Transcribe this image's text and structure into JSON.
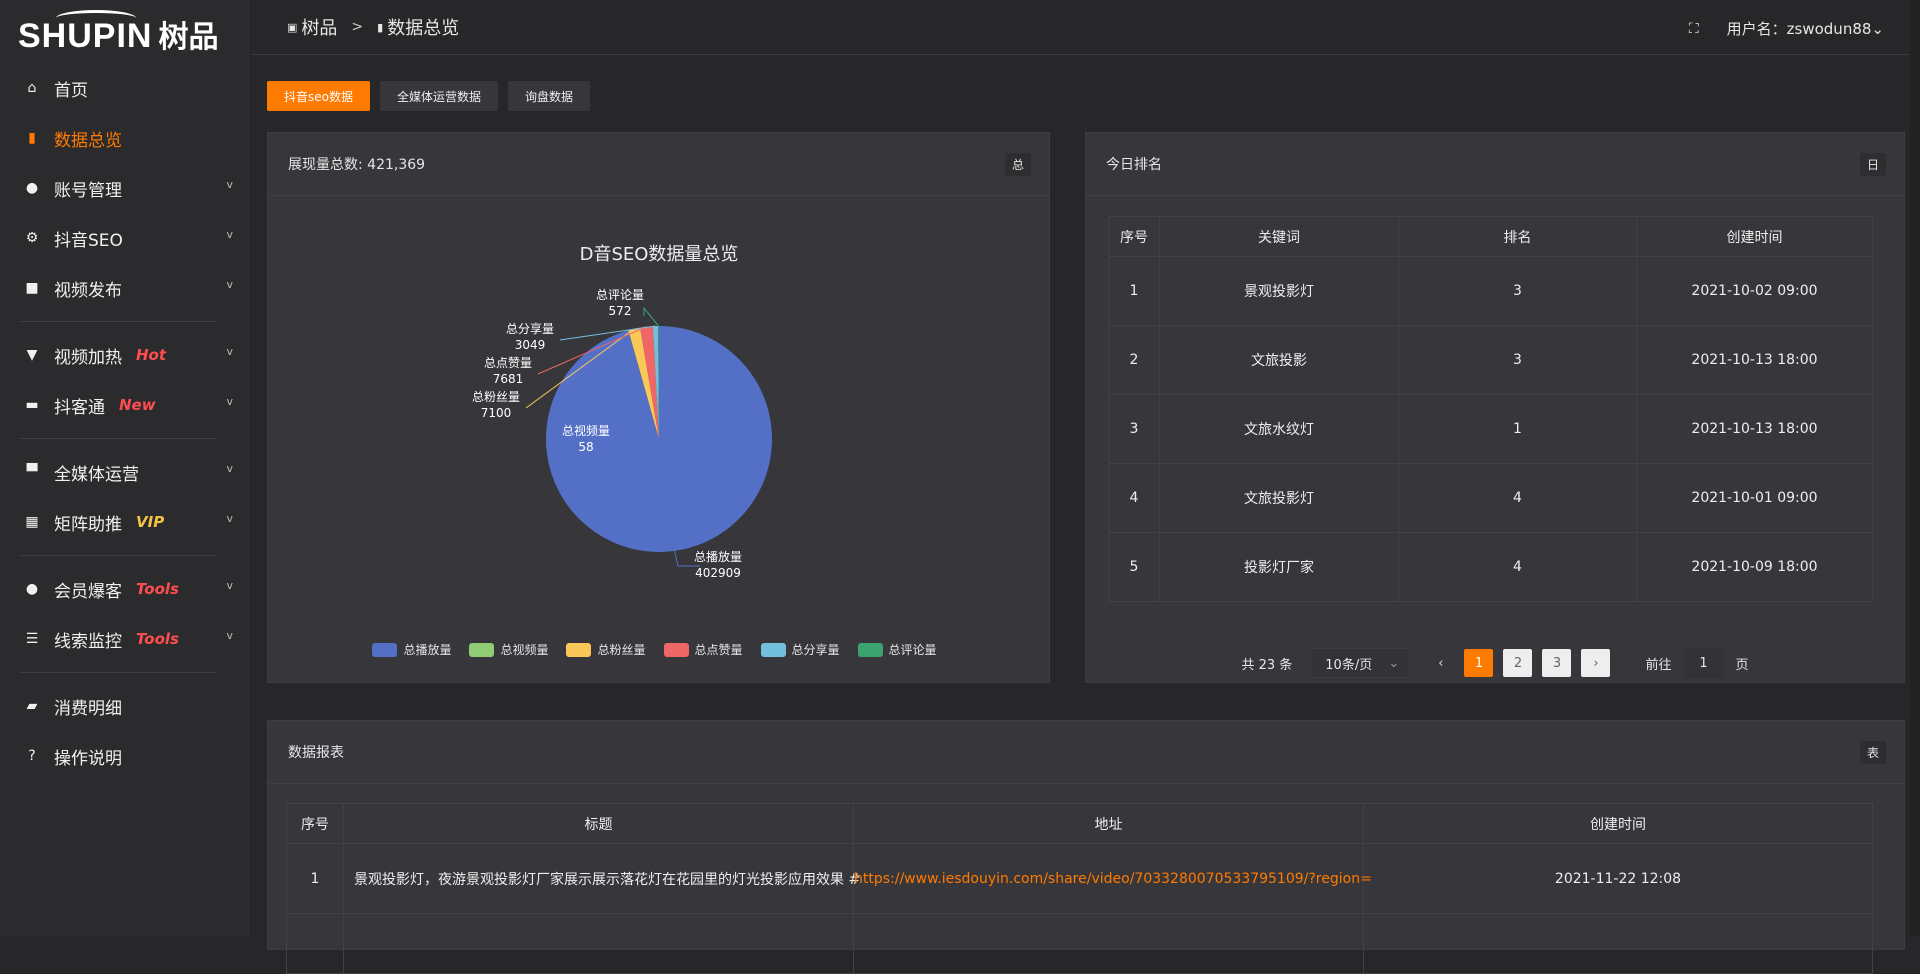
{
  "logo": {
    "en": "SHUPIN",
    "cn": "树品"
  },
  "sidebar": {
    "items": [
      {
        "label": "首页",
        "icon": "home-icon",
        "glyph": "⌂"
      },
      {
        "label": "数据总览",
        "icon": "bar-chart-icon",
        "glyph": "▮",
        "active": true
      },
      {
        "label": "账号管理",
        "icon": "user-icon",
        "glyph": "●",
        "chev": true
      },
      {
        "label": "抖音SEO",
        "icon": "gear-icon",
        "glyph": "⚙",
        "chev": true
      },
      {
        "label": "视频发布",
        "icon": "camera-icon",
        "glyph": "■",
        "chev": true
      },
      {
        "divider": true
      },
      {
        "label": "视频加热",
        "icon": "sign-icon",
        "glyph": "▼",
        "chev": true,
        "tag": "Hot",
        "tagColor": "#ff4d4f"
      },
      {
        "label": "抖客通",
        "icon": "chat-icon",
        "glyph": "▬",
        "chev": true,
        "tag": "New",
        "tagColor": "#ff4d4f"
      },
      {
        "divider": true
      },
      {
        "label": "全媒体运营",
        "icon": "monitor-icon",
        "glyph": "▀",
        "chev": true
      },
      {
        "label": "矩阵助推",
        "icon": "grid-icon",
        "glyph": "▦",
        "chev": true,
        "tag": "VIP",
        "tagColor": "#f5c242"
      },
      {
        "divider": true
      },
      {
        "label": "会员爆客",
        "icon": "user-icon",
        "glyph": "●",
        "chev": true,
        "tag": "Tools",
        "tagColor": "#ff4d4f"
      },
      {
        "label": "线索监控",
        "icon": "sliders-icon",
        "glyph": "☰",
        "chev": true,
        "tag": "Tools",
        "tagColor": "#ff4d4f"
      },
      {
        "divider": true
      },
      {
        "label": "消费明细",
        "icon": "wallet-icon",
        "glyph": "▰"
      },
      {
        "label": "操作说明",
        "icon": "help-icon",
        "glyph": "?"
      }
    ]
  },
  "header": {
    "crumb1": "树品",
    "sep": ">",
    "crumb2": "数据总览",
    "user": "用户名：zswodun88"
  },
  "tabs": [
    {
      "label": "抖音seo数据",
      "active": true
    },
    {
      "label": "全媒体运营数据"
    },
    {
      "label": "询盘数据"
    }
  ],
  "chart_panel": {
    "title": "展现量总数: 421,369",
    "badge": "总"
  },
  "chart_data": {
    "type": "pie",
    "title": "D音SEO数据量总览",
    "legend_position": "bottom",
    "series": [
      {
        "name": "总播放量",
        "value": 402909,
        "color": "#5470c6"
      },
      {
        "name": "总视频量",
        "value": 58,
        "color": "#91cc75"
      },
      {
        "name": "总粉丝量",
        "value": 7100,
        "color": "#fac858"
      },
      {
        "name": "总点赞量",
        "value": 7681,
        "color": "#ee6666"
      },
      {
        "name": "总分享量",
        "value": 3049,
        "color": "#73c0de"
      },
      {
        "name": "总评论量",
        "value": 572,
        "color": "#3ba272"
      }
    ]
  },
  "rank_panel": {
    "title": "今日排名",
    "badge": "日",
    "columns": [
      "序号",
      "关键词",
      "排名",
      "创建时间"
    ],
    "rows": [
      [
        "1",
        "景观投影灯",
        "3",
        "2021-10-02 09:00"
      ],
      [
        "2",
        "文旅投影",
        "3",
        "2021-10-13 18:00"
      ],
      [
        "3",
        "文旅水纹灯",
        "1",
        "2021-10-13 18:00"
      ],
      [
        "4",
        "文旅投影灯",
        "4",
        "2021-10-01 09:00"
      ],
      [
        "5",
        "投影灯厂家",
        "4",
        "2021-10-09 18:00"
      ]
    ],
    "pager": {
      "total": "共 23 条",
      "size": "10条/页",
      "pages": [
        "1",
        "2",
        "3"
      ],
      "current": "1",
      "goto": "前往",
      "goto_val": "1",
      "page_unit": "页"
    }
  },
  "report_panel": {
    "title": "数据报表",
    "badge": "表",
    "columns": [
      "序号",
      "标题",
      "地址",
      "创建时间"
    ],
    "rows": [
      [
        "1",
        "景观投影灯，夜游景观投影灯厂家展示展示落花灯在花园里的灯光投影应用效果 #",
        "https://www.iesdouyin.com/share/video/7033280070533795109/?region=",
        "2021-11-22 12:08"
      ]
    ]
  },
  "colors": {
    "accent": "#ff7a00",
    "link": "#ff7a00"
  }
}
